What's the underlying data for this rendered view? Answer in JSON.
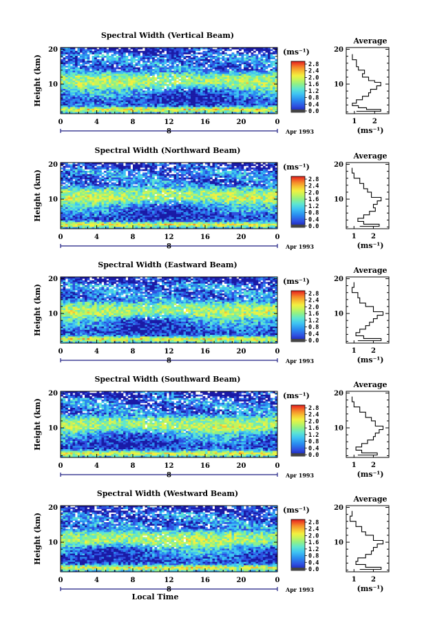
{
  "chart_data": [
    {
      "type": "heatmap",
      "title": "Spectral Width (Vertical Beam)",
      "ylabel": "Height (km)",
      "xlabel": "",
      "x_ticks": [
        "0",
        "4",
        "8",
        "12",
        "16",
        "20",
        "0"
      ],
      "y_ticks": [
        "20",
        "10"
      ],
      "date_marker": "8",
      "date_label": "Apr 1993",
      "colorbar_unit": "(ms⁻¹)",
      "colorbar_ticks": [
        "2.8",
        "2.4",
        "2.0",
        "1.6",
        "1.2",
        "0.8",
        "0.4",
        "0.0"
      ],
      "profile": {
        "title": "Average",
        "xlabel": "(ms⁻¹)",
        "x_ticks": [
          "1",
          "2"
        ],
        "y_ticks": [
          "20",
          "10"
        ],
        "xlim": [
          0.6,
          2.7
        ],
        "points": [
          [
            0.9,
            18.6
          ],
          [
            1.1,
            17
          ],
          [
            1.2,
            15
          ],
          [
            1.5,
            14
          ],
          [
            1.4,
            13
          ],
          [
            1.7,
            12
          ],
          [
            2.0,
            11
          ],
          [
            2.3,
            10.5
          ],
          [
            2.1,
            9.5
          ],
          [
            1.8,
            8.5
          ],
          [
            1.7,
            7.5
          ],
          [
            1.4,
            6.5
          ],
          [
            1.1,
            5.5
          ],
          [
            0.9,
            4.5
          ],
          [
            1.2,
            3.8
          ],
          [
            1.6,
            3.2
          ],
          [
            2.3,
            2.7
          ],
          [
            1.1,
            2.2
          ]
        ]
      }
    },
    {
      "type": "heatmap",
      "title": "Spectral Width (Northward Beam)",
      "ylabel": "Height (km)",
      "xlabel": "",
      "x_ticks": [
        "0",
        "4",
        "8",
        "12",
        "16",
        "20",
        "0"
      ],
      "y_ticks": [
        "20",
        "10"
      ],
      "date_marker": "8",
      "date_label": "Apr 1993",
      "colorbar_unit": "(ms⁻¹)",
      "colorbar_ticks": [
        "2.8",
        "2.4",
        "2.0",
        "1.6",
        "1.2",
        "0.8",
        "0.4",
        "0.0"
      ],
      "profile": {
        "title": "Average",
        "xlabel": "(ms⁻¹)",
        "x_ticks": [
          "1",
          "2"
        ],
        "y_ticks": [
          "20",
          "10"
        ],
        "xlim": [
          0.6,
          2.8
        ],
        "points": [
          [
            0.9,
            19
          ],
          [
            1.0,
            17.5
          ],
          [
            1.3,
            16
          ],
          [
            1.5,
            14.5
          ],
          [
            1.7,
            13
          ],
          [
            1.9,
            12
          ],
          [
            2.4,
            10.5
          ],
          [
            2.2,
            9.5
          ],
          [
            2.0,
            8.5
          ],
          [
            2.1,
            7.5
          ],
          [
            1.8,
            6.5
          ],
          [
            1.5,
            5.5
          ],
          [
            1.2,
            4.5
          ],
          [
            1.5,
            3.6
          ],
          [
            2.3,
            2.8
          ],
          [
            1.3,
            2.2
          ]
        ]
      }
    },
    {
      "type": "heatmap",
      "title": "Spectral Width (Eastward Beam)",
      "ylabel": "Height (km)",
      "xlabel": "",
      "x_ticks": [
        "0",
        "4",
        "8",
        "12",
        "16",
        "20",
        "0"
      ],
      "y_ticks": [
        "20",
        "10"
      ],
      "date_marker": "8",
      "date_label": "Apr 1993",
      "colorbar_unit": "(ms⁻¹)",
      "colorbar_ticks": [
        "2.8",
        "2.4",
        "2.0",
        "1.6",
        "1.2",
        "0.8",
        "0.4",
        "0.0"
      ],
      "profile": {
        "title": "Average",
        "xlabel": "(ms⁻¹)",
        "x_ticks": [
          "1",
          "2"
        ],
        "y_ticks": [
          "20",
          "10"
        ],
        "xlim": [
          0.6,
          2.8
        ],
        "points": [
          [
            1.0,
            19
          ],
          [
            0.9,
            17.5
          ],
          [
            1.2,
            16
          ],
          [
            1.3,
            14.5
          ],
          [
            1.6,
            13
          ],
          [
            2.0,
            12
          ],
          [
            2.5,
            10.5
          ],
          [
            2.2,
            9.5
          ],
          [
            2.0,
            8.5
          ],
          [
            1.8,
            7.5
          ],
          [
            1.6,
            6.5
          ],
          [
            1.3,
            5.5
          ],
          [
            1.1,
            4.5
          ],
          [
            1.5,
            3.6
          ],
          [
            2.4,
            2.8
          ],
          [
            1.2,
            2.2
          ]
        ]
      }
    },
    {
      "type": "heatmap",
      "title": "Spectral Width (Southward Beam)",
      "ylabel": "Height (km)",
      "xlabel": "",
      "x_ticks": [
        "0",
        "4",
        "8",
        "12",
        "16",
        "20",
        "0"
      ],
      "y_ticks": [
        "20",
        "10"
      ],
      "date_marker": "8",
      "date_label": "Apr 1993",
      "colorbar_unit": "(ms⁻¹)",
      "colorbar_ticks": [
        "2.8",
        "2.4",
        "2.0",
        "1.6",
        "1.2",
        "0.8",
        "0.4",
        "0.0"
      ],
      "profile": {
        "title": "Average",
        "xlabel": "(ms⁻¹)",
        "x_ticks": [
          "1",
          "2"
        ],
        "y_ticks": [
          "20",
          "10"
        ],
        "xlim": [
          0.6,
          2.8
        ],
        "points": [
          [
            0.9,
            19
          ],
          [
            1.0,
            17.5
          ],
          [
            1.3,
            16
          ],
          [
            1.6,
            14.5
          ],
          [
            1.9,
            13
          ],
          [
            2.1,
            12
          ],
          [
            2.5,
            10.5
          ],
          [
            2.3,
            9.5
          ],
          [
            2.1,
            8.5
          ],
          [
            2.0,
            7.5
          ],
          [
            1.7,
            6.5
          ],
          [
            1.4,
            5.5
          ],
          [
            1.1,
            4.5
          ],
          [
            1.4,
            3.6
          ],
          [
            2.2,
            2.8
          ],
          [
            1.2,
            2.2
          ]
        ]
      }
    },
    {
      "type": "heatmap",
      "title": "Spectral Width (Westward Beam)",
      "ylabel": "Height (km)",
      "xlabel": "Local Time",
      "x_ticks": [
        "0",
        "4",
        "8",
        "12",
        "16",
        "20",
        "0"
      ],
      "y_ticks": [
        "20",
        "10"
      ],
      "date_marker": "8",
      "date_label": "Apr 1993",
      "colorbar_unit": "(ms⁻¹)",
      "colorbar_ticks": [
        "2.8",
        "2.4",
        "2.0",
        "1.6",
        "1.2",
        "0.8",
        "0.4",
        "0.0"
      ],
      "profile": {
        "title": "Average",
        "xlabel": "(ms⁻¹)",
        "x_ticks": [
          "1",
          "2"
        ],
        "y_ticks": [
          "20",
          "10"
        ],
        "xlim": [
          0.6,
          2.8
        ],
        "points": [
          [
            0.9,
            19
          ],
          [
            0.8,
            17.5
          ],
          [
            1.1,
            16
          ],
          [
            1.4,
            14.5
          ],
          [
            1.6,
            13
          ],
          [
            2.0,
            12
          ],
          [
            2.5,
            10.5
          ],
          [
            2.2,
            9.5
          ],
          [
            2.0,
            8.5
          ],
          [
            1.9,
            7.5
          ],
          [
            1.6,
            6.5
          ],
          [
            1.2,
            5.5
          ],
          [
            1.1,
            4.5
          ],
          [
            1.6,
            3.6
          ],
          [
            2.4,
            2.8
          ],
          [
            1.3,
            2.2
          ]
        ]
      }
    }
  ],
  "colors": {
    "colormap": [
      "#1a1aa6",
      "#2e4fe0",
      "#2a8cf0",
      "#3fc4f2",
      "#5fe6d0",
      "#8df08a",
      "#c6f45a",
      "#f2f040",
      "#f7c233",
      "#f58a2a",
      "#ef4a23",
      "#d81e1e"
    ],
    "bottom_band": "#444444"
  }
}
